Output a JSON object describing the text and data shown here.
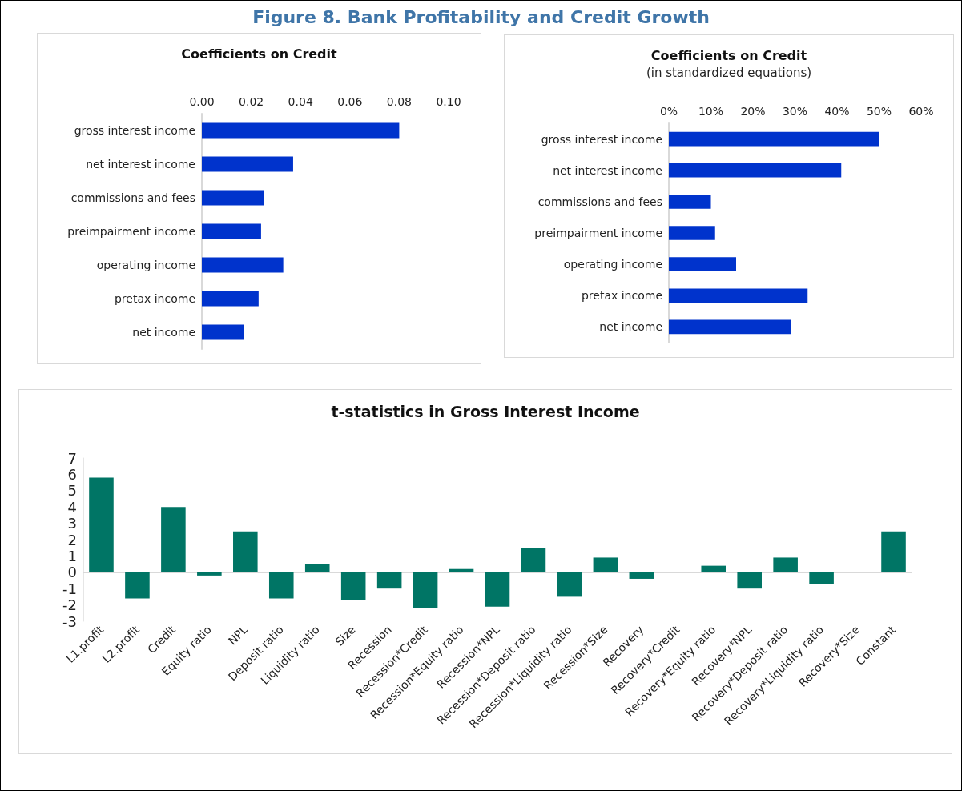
{
  "chart_data": [
    {
      "type": "other",
      "title": "Figure 8. Bank Profitability and Credit Growth"
    },
    {
      "type": "bar",
      "title": "Coefficients on Credit",
      "orientation": "horizontal",
      "categories": [
        "gross interest income",
        "net interest income",
        "commissions and fees",
        "preimpairment income",
        "operating income",
        "pretax income",
        "net income"
      ],
      "values": [
        0.08,
        0.037,
        0.025,
        0.024,
        0.033,
        0.023,
        0.017
      ],
      "color": "#0033cc",
      "xlim": [
        0,
        0.1
      ],
      "xticks": [
        {
          "value": 0,
          "label": "0.00"
        },
        {
          "value": 0.02,
          "label": "0.02"
        },
        {
          "value": 0.04,
          "label": "0.04"
        },
        {
          "value": 0.06,
          "label": "0.06"
        },
        {
          "value": 0.08,
          "label": "0.08"
        },
        {
          "value": 0.1,
          "label": "0.10"
        }
      ]
    },
    {
      "type": "bar",
      "title": "Coefficients on Credit",
      "subtitle": "(in standardized equations)",
      "orientation": "horizontal",
      "categories": [
        "gross interest income",
        "net interest income",
        "commissions and fees",
        "preimpairment income",
        "operating income",
        "pretax income",
        "net income"
      ],
      "values": [
        50,
        41,
        10,
        11,
        16,
        33,
        29
      ],
      "color": "#0033cc",
      "xlim": [
        0,
        60
      ],
      "xticks": [
        {
          "value": 0,
          "label": "0%"
        },
        {
          "value": 10,
          "label": "10%"
        },
        {
          "value": 20,
          "label": "20%"
        },
        {
          "value": 30,
          "label": "30%"
        },
        {
          "value": 40,
          "label": "40%"
        },
        {
          "value": 50,
          "label": "50%"
        },
        {
          "value": 60,
          "label": "60%"
        }
      ]
    },
    {
      "type": "bar",
      "title": "t-statistics in Gross Interest Income",
      "categories": [
        "L1.profit",
        "L2.profit",
        "Credit",
        "Equity ratio",
        "NPL",
        "Deposit ratio",
        "Liquidity ratio",
        "Size",
        "Recession",
        "Recession*Credit",
        "Recession*Equity ratio",
        "Recession*NPL",
        "Recession*Deposit ratio",
        "Recession*Liquidity ratio",
        "Recession*Size",
        "Recovery",
        "Recovery*Credit",
        "Recovery*Equity ratio",
        "Recovery*NPL",
        "Recovery*Deposit ratio",
        "Recovery*Liquidity ratio",
        "Recovery*Size",
        "Constant"
      ],
      "values": [
        5.8,
        -1.6,
        4.0,
        -0.2,
        2.5,
        -1.6,
        0.5,
        -1.7,
        -1.0,
        -2.2,
        0.2,
        -2.1,
        1.5,
        -1.5,
        0.9,
        -0.4,
        0.0,
        0.4,
        -1.0,
        0.9,
        -0.7,
        0.0,
        2.5
      ],
      "color": "#007565",
      "ylim": [
        -3,
        7
      ],
      "yticks": [
        -3,
        -2,
        -1,
        0,
        1,
        2,
        3,
        4,
        5,
        6,
        7
      ]
    }
  ]
}
